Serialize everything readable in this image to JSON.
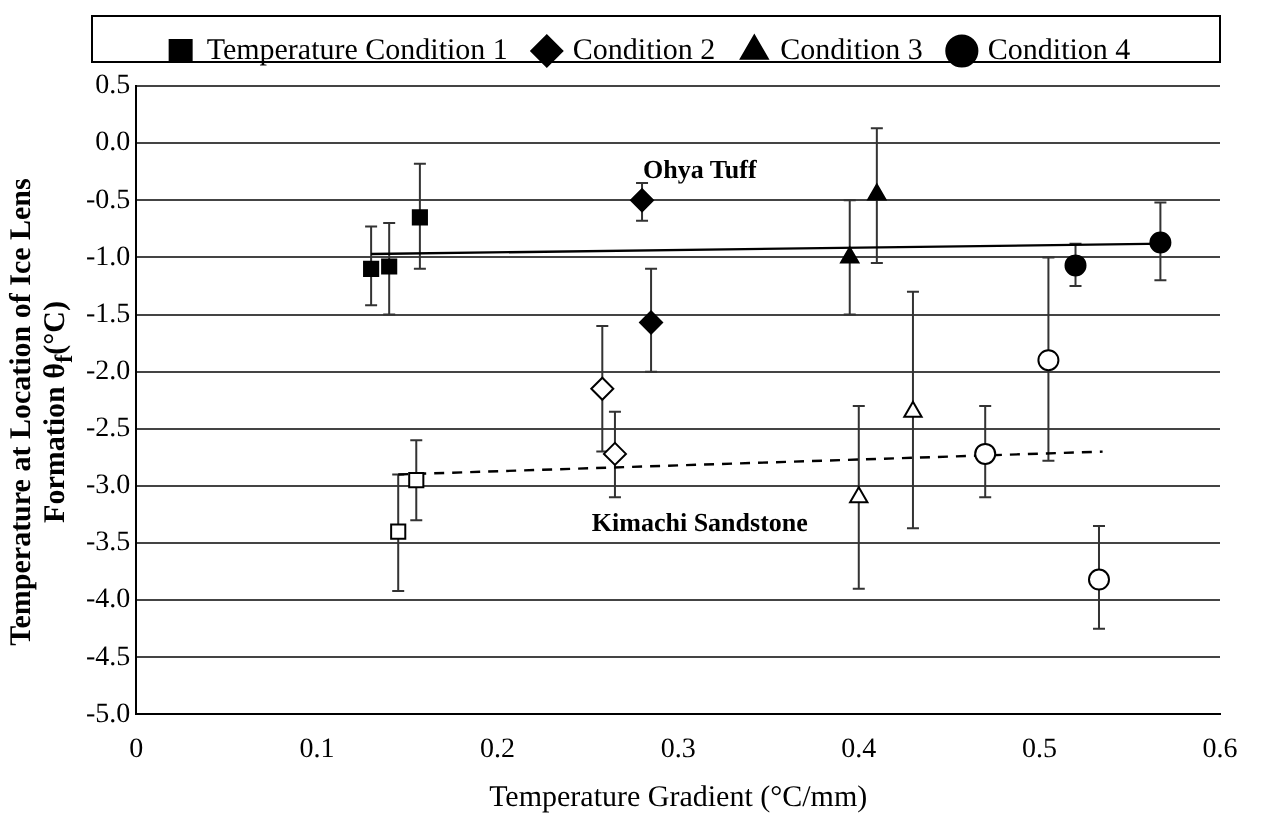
{
  "chart_data": {
    "type": "scatter",
    "xlabel": "Temperature Gradient (°C/mm)",
    "ylabel": "Temperature at Location of Ice Lens Formation θ$_{f}$(°C)",
    "xlim": [
      0,
      0.6
    ],
    "xticks": [
      0,
      0.1,
      0.2,
      0.3,
      0.4,
      0.5,
      0.6
    ],
    "ylim": [
      -5,
      0.5
    ],
    "yticks": [
      {
        "value": 0.5,
        "label": "0.5"
      },
      {
        "value": 0,
        "label": "0.0"
      },
      {
        "value": -0.5,
        "label": "-0.5"
      },
      {
        "value": -1,
        "label": "-1.0"
      },
      {
        "value": -1.5,
        "label": "-1.5"
      },
      {
        "value": -2,
        "label": "-2.0"
      },
      {
        "value": -2.5,
        "label": "-2.5"
      },
      {
        "value": -3,
        "label": "-3.0"
      },
      {
        "value": -3.5,
        "label": "-3.5"
      },
      {
        "value": -4,
        "label": "-4.0"
      },
      {
        "value": -4.5,
        "label": "-4.5"
      },
      {
        "value": -5,
        "label": "-5.0"
      }
    ],
    "grid": "y",
    "legend": "top",
    "annotations": [
      "Ohya Tuff",
      "Kimachi Sandstone"
    ],
    "series": [
      {
        "name": "Temperature Condition 1",
        "marker": "square",
        "color": "#000000",
        "x": [
          0.13,
          0.14,
          0.157
        ],
        "values": [
          -1.1,
          -1.08,
          -0.65
        ],
        "errors": [
          [
            -1.42,
            -0.73
          ],
          [
            -1.5,
            -0.7
          ],
          [
            -1.1,
            -0.18
          ]
        ]
      },
      {
        "name": "Condition 2",
        "marker": "diamond",
        "color": "#000000",
        "x": [
          0.28,
          0.285
        ],
        "values": [
          -0.5,
          -1.57
        ],
        "errors": [
          [
            -0.68,
            -0.35
          ],
          [
            -2.0,
            -1.1
          ]
        ]
      },
      {
        "name": "Condition 3",
        "marker": "triangle",
        "color": "#000000",
        "x": [
          0.395,
          0.41
        ],
        "values": [
          -1.0,
          -0.45
        ],
        "errors": [
          [
            -1.5,
            -0.5
          ],
          [
            -1.05,
            0.13
          ]
        ]
      },
      {
        "name": "Condition 4",
        "marker": "circle",
        "color": "#000000",
        "x": [
          0.52,
          0.567
        ],
        "values": [
          -1.07,
          -0.87
        ],
        "errors": [
          [
            -1.25,
            -0.88
          ],
          [
            -1.2,
            -0.52
          ]
        ]
      },
      {
        "marker": "square",
        "color": "#ffffff",
        "x": [
          0.145,
          0.155
        ],
        "values": [
          -3.4,
          -2.95
        ],
        "errors": [
          [
            -3.92,
            -2.9
          ],
          [
            -3.3,
            -2.6
          ]
        ]
      },
      {
        "marker": "diamond",
        "color": "#ffffff",
        "x": [
          0.258,
          0.265
        ],
        "values": [
          -2.15,
          -2.72
        ],
        "errors": [
          [
            -2.7,
            -1.6
          ],
          [
            -3.1,
            -2.35
          ]
        ]
      },
      {
        "marker": "triangle",
        "color": "#ffffff",
        "x": [
          0.4,
          0.43
        ],
        "values": [
          -3.1,
          -2.35
        ],
        "errors": [
          [
            -3.9,
            -2.3
          ],
          [
            -3.37,
            -1.3
          ]
        ]
      },
      {
        "marker": "circle",
        "color": "#ffffff",
        "x": [
          0.47,
          0.505,
          0.533
        ],
        "values": [
          -2.72,
          -1.9,
          -3.82
        ],
        "errors": [
          [
            -3.1,
            -2.3
          ],
          [
            -2.78,
            -1.0
          ],
          [
            -4.25,
            -3.35
          ]
        ]
      },
      {
        "type": "line",
        "line_style": "solid",
        "marker": "none",
        "color": "#000000",
        "x": [
          0.13,
          0.57
        ],
        "values": [
          -0.97,
          -0.88
        ]
      },
      {
        "type": "line",
        "line_style": "dashed",
        "marker": "none",
        "color": "#000000",
        "x": [
          0.145,
          0.535
        ],
        "values": [
          -2.9,
          -2.7
        ]
      }
    ]
  }
}
